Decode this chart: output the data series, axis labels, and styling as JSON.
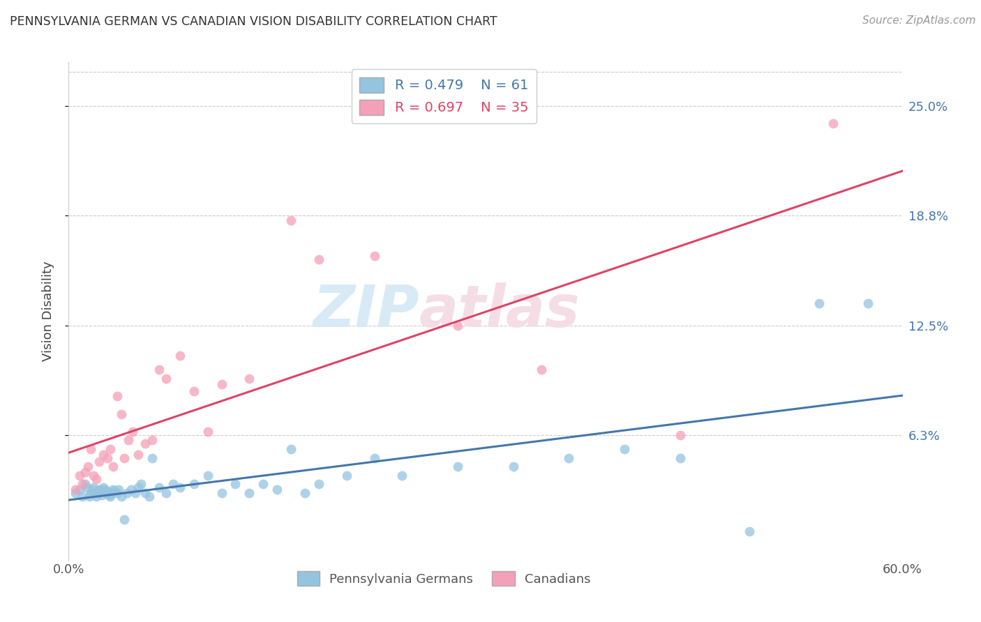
{
  "title": "PENNSYLVANIA GERMAN VS CANADIAN VISION DISABILITY CORRELATION CHART",
  "source": "Source: ZipAtlas.com",
  "ylabel": "Vision Disability",
  "ytick_labels": [
    "25.0%",
    "18.8%",
    "12.5%",
    "6.3%"
  ],
  "ytick_values": [
    0.25,
    0.188,
    0.125,
    0.063
  ],
  "xlim": [
    0.0,
    0.6
  ],
  "ylim": [
    -0.008,
    0.275
  ],
  "blue_color": "#94C4E0",
  "pink_color": "#F4A0B8",
  "blue_line_color": "#4477AA",
  "pink_line_color": "#DD4466",
  "legend_R_blue": "R = 0.479",
  "legend_N_blue": "N = 61",
  "legend_R_pink": "R = 0.697",
  "legend_N_pink": "N = 35",
  "background_color": "#FFFFFF",
  "watermark_1": "ZIP",
  "watermark_2": "atlas",
  "blue_x": [
    0.005,
    0.008,
    0.01,
    0.012,
    0.013,
    0.015,
    0.016,
    0.017,
    0.018,
    0.019,
    0.02,
    0.021,
    0.022,
    0.023,
    0.024,
    0.025,
    0.026,
    0.027,
    0.028,
    0.029,
    0.03,
    0.031,
    0.032,
    0.033,
    0.035,
    0.036,
    0.038,
    0.04,
    0.042,
    0.045,
    0.048,
    0.05,
    0.052,
    0.055,
    0.058,
    0.06,
    0.065,
    0.07,
    0.075,
    0.08,
    0.09,
    0.1,
    0.11,
    0.12,
    0.13,
    0.14,
    0.15,
    0.16,
    0.17,
    0.18,
    0.2,
    0.22,
    0.24,
    0.28,
    0.32,
    0.36,
    0.4,
    0.44,
    0.49,
    0.54,
    0.575
  ],
  "blue_y": [
    0.03,
    0.032,
    0.028,
    0.035,
    0.033,
    0.028,
    0.03,
    0.032,
    0.033,
    0.03,
    0.028,
    0.03,
    0.032,
    0.031,
    0.029,
    0.033,
    0.032,
    0.03,
    0.031,
    0.029,
    0.028,
    0.03,
    0.032,
    0.031,
    0.03,
    0.032,
    0.028,
    0.015,
    0.03,
    0.032,
    0.03,
    0.033,
    0.035,
    0.03,
    0.028,
    0.05,
    0.033,
    0.03,
    0.035,
    0.033,
    0.035,
    0.04,
    0.03,
    0.035,
    0.03,
    0.035,
    0.032,
    0.055,
    0.03,
    0.035,
    0.04,
    0.05,
    0.04,
    0.045,
    0.045,
    0.05,
    0.055,
    0.05,
    0.008,
    0.138,
    0.138
  ],
  "pink_x": [
    0.005,
    0.008,
    0.01,
    0.012,
    0.014,
    0.016,
    0.018,
    0.02,
    0.022,
    0.025,
    0.028,
    0.03,
    0.032,
    0.035,
    0.038,
    0.04,
    0.043,
    0.046,
    0.05,
    0.055,
    0.06,
    0.065,
    0.07,
    0.08,
    0.09,
    0.1,
    0.11,
    0.13,
    0.16,
    0.18,
    0.22,
    0.28,
    0.34,
    0.44,
    0.55
  ],
  "pink_y": [
    0.032,
    0.04,
    0.035,
    0.042,
    0.045,
    0.055,
    0.04,
    0.038,
    0.048,
    0.052,
    0.05,
    0.055,
    0.045,
    0.085,
    0.075,
    0.05,
    0.06,
    0.065,
    0.052,
    0.058,
    0.06,
    0.1,
    0.095,
    0.108,
    0.088,
    0.065,
    0.092,
    0.095,
    0.185,
    0.163,
    0.165,
    0.125,
    0.1,
    0.063,
    0.24
  ]
}
